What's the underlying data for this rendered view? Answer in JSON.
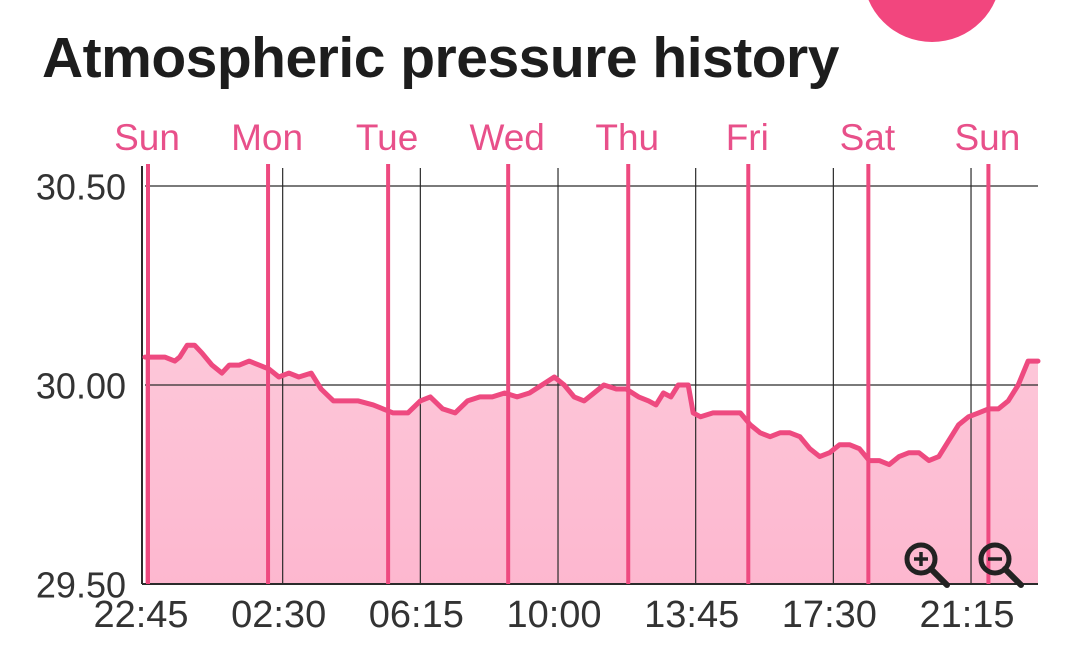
{
  "page": {
    "title": "Atmospheric pressure history"
  },
  "zoom": {
    "zoom_in_icon": "zoom-in-magnifier-icon",
    "zoom_out_icon": "zoom-out-magnifier-icon"
  },
  "colors": {
    "accent": "#f2467e",
    "line": "#ee4a80",
    "fill": "#fdb7cf",
    "day_label": "#e8508a",
    "grid": "#2b2b2b",
    "axis_text": "#333333"
  },
  "chart_data": {
    "type": "area",
    "title": "Atmospheric pressure history",
    "xlabel": "",
    "ylabel": "",
    "ylim": [
      29.5,
      30.5
    ],
    "y_ticks": [
      {
        "value": 30.5,
        "label": "30.50"
      },
      {
        "value": 30.0,
        "label": "30.00"
      },
      {
        "value": 29.5,
        "label": "29.50"
      }
    ],
    "grid": true,
    "x_unit": "hours since first sample",
    "xlim": [
      0,
      180
    ],
    "time_ticks": [
      {
        "label": "22:45",
        "x": 0
      },
      {
        "label": "02:30",
        "x": 27.75
      },
      {
        "label": "06:15",
        "x": 55.5
      },
      {
        "label": "10:00",
        "x": 83.25
      },
      {
        "label": "13:45",
        "x": 111
      },
      {
        "label": "17:30",
        "x": 138.75
      },
      {
        "label": "21:15",
        "x": 166.5
      }
    ],
    "day_markers": [
      {
        "label": "Sun",
        "x": 0
      },
      {
        "label": "Mon",
        "x": 24.2
      },
      {
        "label": "Tue",
        "x": 48.4
      },
      {
        "label": "Wed",
        "x": 72.6
      },
      {
        "label": "Thu",
        "x": 96.8
      },
      {
        "label": "Fri",
        "x": 121
      },
      {
        "label": "Sat",
        "x": 145.2
      },
      {
        "label": "Sun",
        "x": 169.4
      }
    ],
    "series": [
      {
        "values": [
          [
            0,
            30.07
          ],
          [
            2,
            30.07
          ],
          [
            4,
            30.07
          ],
          [
            6,
            30.06
          ],
          [
            7,
            30.07
          ],
          [
            8.5,
            30.1
          ],
          [
            10,
            30.1
          ],
          [
            11.5,
            30.08
          ],
          [
            13.5,
            30.05
          ],
          [
            15.5,
            30.03
          ],
          [
            17,
            30.05
          ],
          [
            19,
            30.05
          ],
          [
            21,
            30.06
          ],
          [
            23,
            30.05
          ],
          [
            25,
            30.04
          ],
          [
            27,
            30.02
          ],
          [
            29,
            30.03
          ],
          [
            31,
            30.02
          ],
          [
            33.5,
            30.03
          ],
          [
            35.5,
            29.99
          ],
          [
            38,
            29.96
          ],
          [
            41,
            29.96
          ],
          [
            43,
            29.96
          ],
          [
            46,
            29.95
          ],
          [
            48,
            29.94
          ],
          [
            50,
            29.93
          ],
          [
            53,
            29.93
          ],
          [
            55.5,
            29.96
          ],
          [
            57.5,
            29.97
          ],
          [
            60,
            29.94
          ],
          [
            62.5,
            29.93
          ],
          [
            65,
            29.96
          ],
          [
            67.5,
            29.97
          ],
          [
            70,
            29.97
          ],
          [
            72.5,
            29.98
          ],
          [
            75,
            29.97
          ],
          [
            77.5,
            29.98
          ],
          [
            80,
            30.0
          ],
          [
            82.5,
            30.02
          ],
          [
            84.5,
            30.0
          ],
          [
            86.5,
            29.97
          ],
          [
            88.5,
            29.96
          ],
          [
            90.5,
            29.98
          ],
          [
            92.5,
            30.0
          ],
          [
            95,
            29.99
          ],
          [
            97,
            29.99
          ],
          [
            99.5,
            29.97
          ],
          [
            101.5,
            29.96
          ],
          [
            103,
            29.95
          ],
          [
            104.5,
            29.98
          ],
          [
            106,
            29.97
          ],
          [
            107.5,
            30.0
          ],
          [
            109.5,
            30.0
          ],
          [
            110.5,
            29.93
          ],
          [
            112,
            29.92
          ],
          [
            114.5,
            29.93
          ],
          [
            117,
            29.93
          ],
          [
            120,
            29.93
          ],
          [
            122,
            29.9
          ],
          [
            124,
            29.88
          ],
          [
            126,
            29.87
          ],
          [
            128,
            29.88
          ],
          [
            130,
            29.88
          ],
          [
            132,
            29.87
          ],
          [
            134,
            29.84
          ],
          [
            136,
            29.82
          ],
          [
            138,
            29.83
          ],
          [
            140,
            29.85
          ],
          [
            142,
            29.85
          ],
          [
            144,
            29.84
          ],
          [
            146,
            29.81
          ],
          [
            148,
            29.81
          ],
          [
            150,
            29.8
          ],
          [
            152,
            29.82
          ],
          [
            154,
            29.83
          ],
          [
            156,
            29.83
          ],
          [
            158,
            29.81
          ],
          [
            160,
            29.82
          ],
          [
            162,
            29.86
          ],
          [
            164,
            29.9
          ],
          [
            166,
            29.92
          ],
          [
            168,
            29.93
          ],
          [
            170,
            29.94
          ],
          [
            172,
            29.94
          ],
          [
            174,
            29.96
          ],
          [
            176,
            30.0
          ],
          [
            178,
            30.06
          ],
          [
            180,
            30.06
          ]
        ]
      }
    ]
  }
}
